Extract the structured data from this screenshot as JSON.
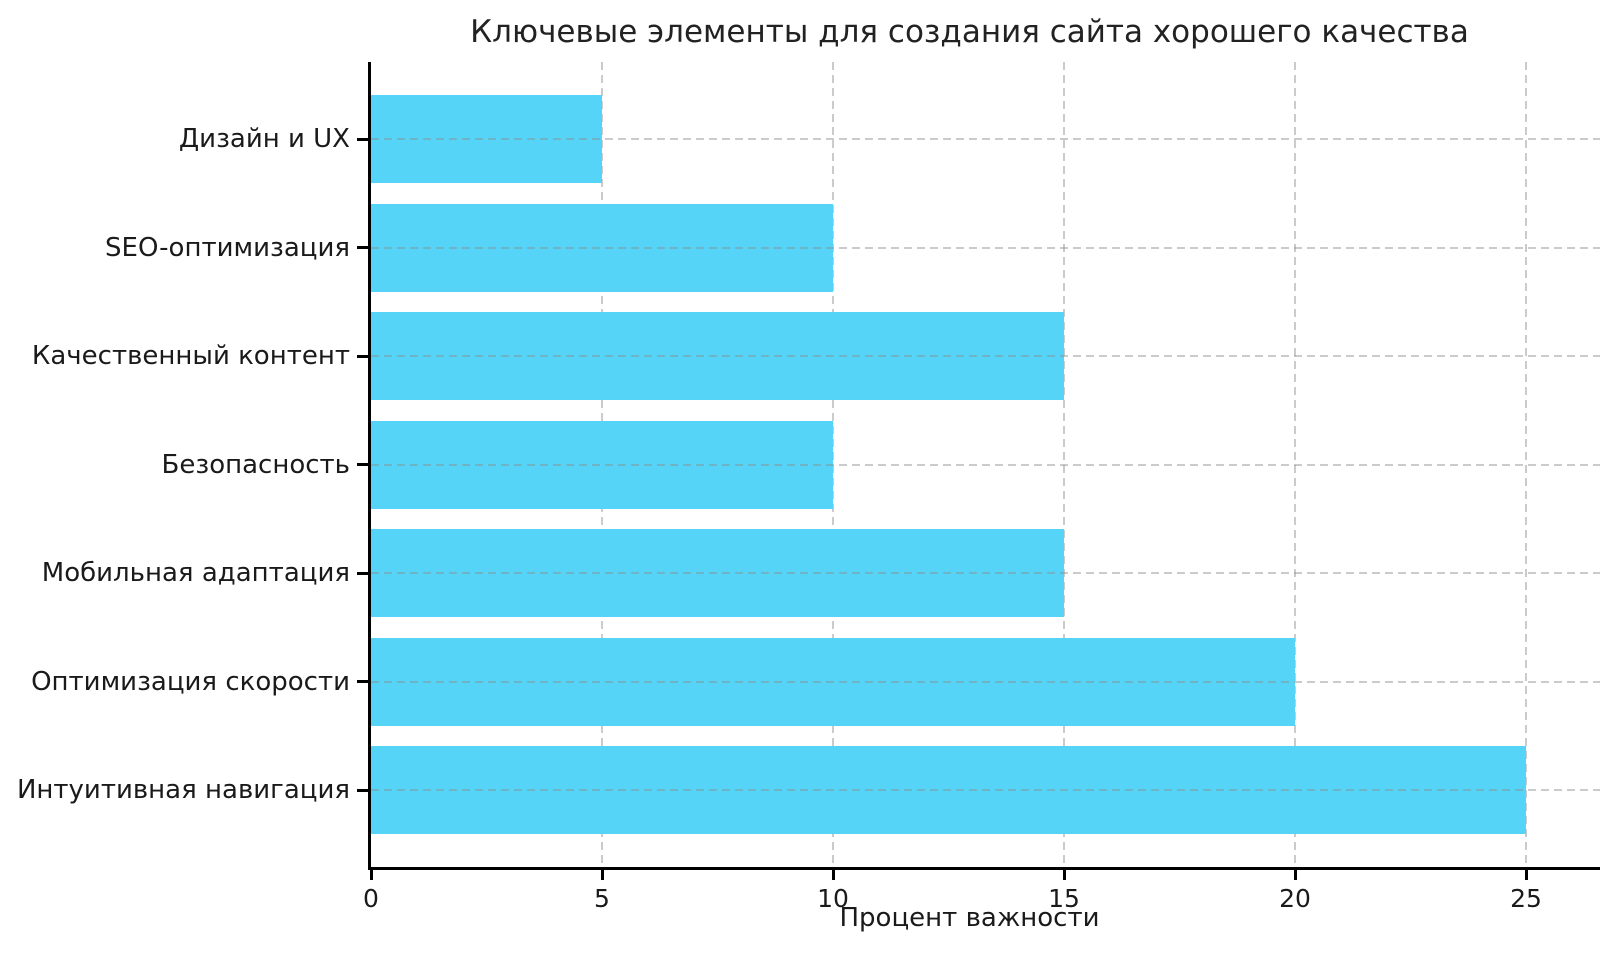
{
  "chart_data": {
    "type": "bar",
    "orientation": "horizontal",
    "title": "Ключевые элементы для создания сайта хорошего качества",
    "xlabel": "Процент важности",
    "ylabel": "",
    "categories_top_to_bottom": [
      "Дизайн и UX",
      "SEO-оптимизация",
      "Качественный контент",
      "Безопасность",
      "Мобильная адаптация",
      "Оптимизация скорости",
      "Интуитивная навигация"
    ],
    "values": [
      5,
      10,
      15,
      10,
      15,
      20,
      25
    ],
    "x_ticks": [
      0,
      5,
      10,
      15,
      20,
      25
    ],
    "xlim": [
      0,
      26.6
    ],
    "bar_color": "#55d4f7",
    "grid": {
      "style": "dashed",
      "color": "rgba(140,140,140,0.45)",
      "axes": "both"
    },
    "legend": null
  }
}
